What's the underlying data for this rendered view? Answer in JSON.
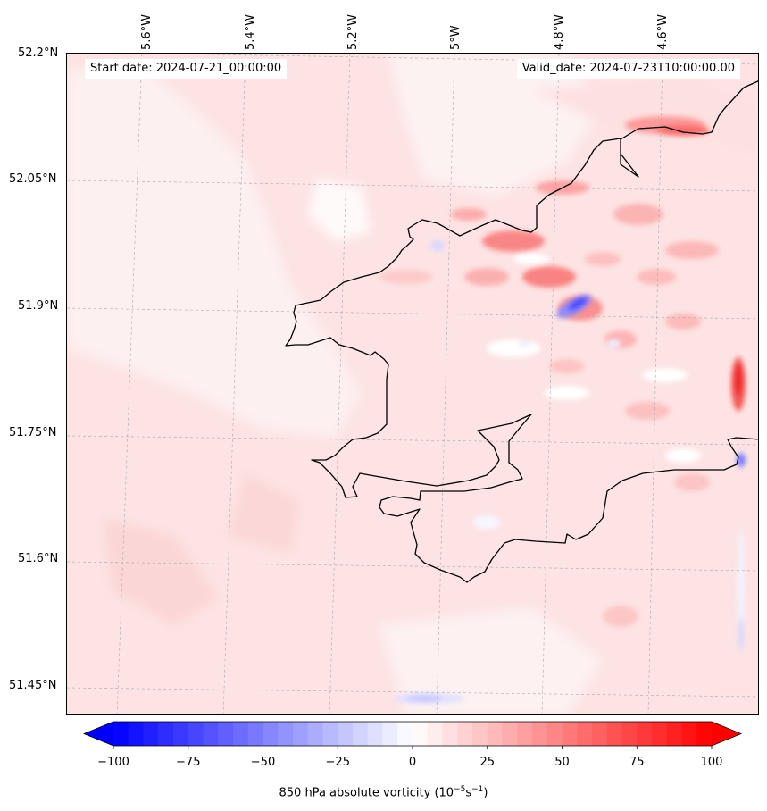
{
  "map": {
    "start_label": "Start date: 2024-07-21_00:00:00",
    "valid_label": "Valid_date: 2024-07-23T10:00:00.00",
    "lat_ticks": [
      "52.2°N",
      "52.05°N",
      "51.9°N",
      "51.75°N",
      "51.6°N",
      "51.45°N"
    ],
    "lon_ticks": [
      "5.6°W",
      "5.4°W",
      "5.2°W",
      "5°W",
      "4.8°W",
      "4.6°W"
    ],
    "lat_range": [
      51.43,
      52.2
    ],
    "lon_range": [
      -5.72,
      -4.55
    ],
    "gridlines": true,
    "coastline_color": "#000000"
  },
  "colorbar": {
    "ticks": [
      "−100",
      "−75",
      "−50",
      "−25",
      "0",
      "25",
      "50",
      "75",
      "100"
    ],
    "tick_values": [
      -100,
      -75,
      -50,
      -25,
      0,
      25,
      50,
      75,
      100
    ],
    "range": [
      -100,
      100
    ],
    "extend": "both",
    "cmap": "bwr",
    "low_color": "#0000ff",
    "mid_color": "#ffffff",
    "high_color": "#ff0000",
    "title_text": "850 hPa absolute vorticity (10",
    "title_sup1": "−5",
    "title_mid": "s",
    "title_sup2": "−1",
    "title_end": ")"
  }
}
